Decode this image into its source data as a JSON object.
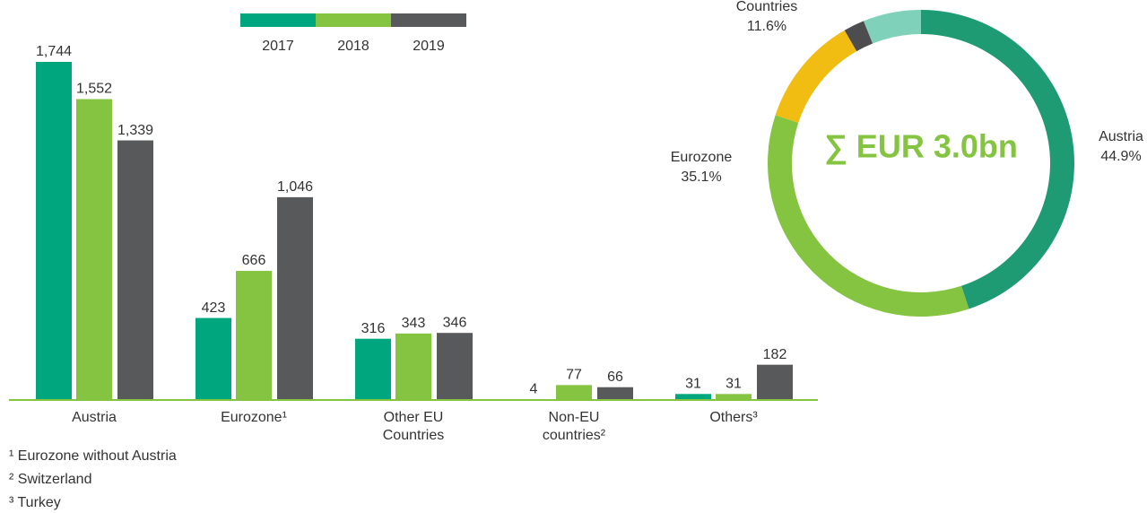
{
  "chart_data": [
    {
      "type": "bar",
      "categories": [
        "Austria",
        "Eurozone¹",
        "Other EU Countries",
        "Non-EU countries²",
        "Others³"
      ],
      "series": [
        {
          "name": "2017",
          "color": "#00a67e",
          "values": [
            1744,
            423,
            316,
            4,
            31
          ],
          "value_labels": [
            "1,744",
            "423",
            "316",
            "4",
            "31"
          ]
        },
        {
          "name": "2018",
          "color": "#84c441",
          "values": [
            1552,
            666,
            343,
            77,
            31
          ],
          "value_labels": [
            "1,552",
            "666",
            "343",
            "77",
            "31"
          ]
        },
        {
          "name": "2019",
          "color": "#58595b",
          "values": [
            1339,
            1046,
            346,
            66,
            182
          ],
          "value_labels": [
            "1,339",
            "1,046",
            "346",
            "66",
            "182"
          ]
        }
      ],
      "footnotes": [
        "¹ Eurozone without Austria",
        "² Switzerland",
        "³ Turkey"
      ]
    },
    {
      "type": "pie",
      "title": "∑ EUR 3.0bn",
      "categories": [
        "Austria",
        "Eurozone",
        "Other EU Countries",
        null,
        null
      ],
      "values": [
        44.9,
        35.1,
        11.6,
        2.2,
        6.1
      ],
      "value_labels": [
        "44.9%",
        "35.1%",
        "11.6%",
        null,
        null
      ],
      "colors": [
        "#1e9b73",
        "#84c441",
        "#f2bd12",
        "#4d4d4f",
        "#7fd1b9"
      ]
    }
  ]
}
